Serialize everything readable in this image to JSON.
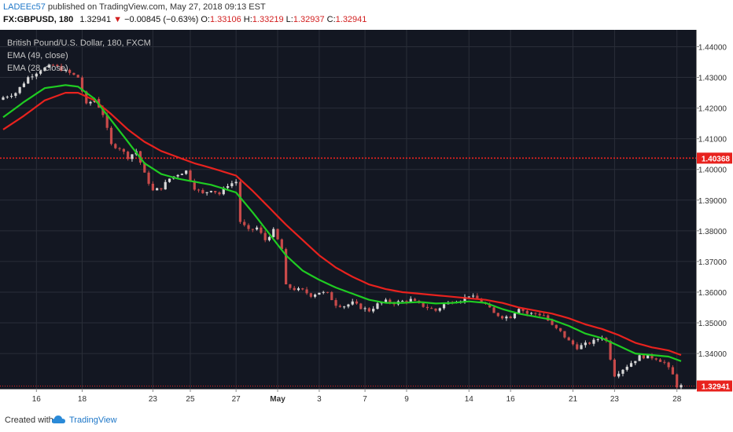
{
  "header": {
    "author": "LADEEc57",
    "published_text": "published on TradingView.com, May 27, 2018 09:13 EST",
    "symbol": "FX:GBPUSD, 180",
    "last": "1.32941",
    "change": "−0.00845 (−0.63%)",
    "o_label": "O:",
    "o_value": "1.33106",
    "h_label": "H:",
    "h_value": "1.33219",
    "l_label": "L:",
    "l_value": "1.32937",
    "c_label": "C:",
    "c_value": "1.32941"
  },
  "legend": {
    "title": "British Pound/U.S. Dollar, 180, FXCM",
    "ema1": "EMA (49, close)",
    "ema2": "EMA (28, close)"
  },
  "footer": {
    "created_with": "Created with",
    "brand": "TradingView"
  },
  "colors": {
    "background": "#131722",
    "grid": "#2a2e39",
    "candle_up": "#d8d8d8",
    "candle_down": "#c84a4a",
    "ema49": "#e8221e",
    "ema28": "#1fcc22",
    "hline": "#e8221e",
    "price_tag": "#e8221e"
  },
  "chart_data": {
    "type": "candlestick",
    "title": "British Pound/U.S. Dollar, 180, FXCM",
    "ylim": [
      1.3285,
      1.4455
    ],
    "y_ticks": [
      "1.44000",
      "1.43000",
      "1.42000",
      "1.41000",
      "1.40000",
      "1.39000",
      "1.38000",
      "1.37000",
      "1.36000",
      "1.35000",
      "1.34000"
    ],
    "x_ticks": [
      "16",
      "18",
      "23",
      "25",
      "27",
      "May",
      "3",
      "7",
      "9",
      "14",
      "16",
      "21",
      "23",
      "28"
    ],
    "x_tick_index": [
      8,
      19,
      36,
      45,
      56,
      66,
      76,
      87,
      97,
      112,
      122,
      137,
      147,
      162
    ],
    "horizontal_line": {
      "value": 1.40368,
      "label": "1.40368"
    },
    "last_price": {
      "value": 1.32941,
      "label": "1.32941"
    },
    "close_path": [
      [
        0,
        1.4235
      ],
      [
        3,
        1.425
      ],
      [
        6,
        1.43
      ],
      [
        9,
        1.4325
      ],
      [
        12,
        1.434
      ],
      [
        15,
        1.432
      ],
      [
        18,
        1.43
      ],
      [
        20,
        1.421
      ],
      [
        22,
        1.423
      ],
      [
        24,
        1.418
      ],
      [
        26,
        1.408
      ],
      [
        28,
        1.407
      ],
      [
        30,
        1.404
      ],
      [
        32,
        1.406
      ],
      [
        34,
        1.3985
      ],
      [
        36,
        1.393
      ],
      [
        38,
        1.394
      ],
      [
        40,
        1.397
      ],
      [
        42,
        1.3985
      ],
      [
        44,
        1.3995
      ],
      [
        46,
        1.394
      ],
      [
        48,
        1.392
      ],
      [
        50,
        1.3935
      ],
      [
        52,
        1.392
      ],
      [
        54,
        1.395
      ],
      [
        56,
        1.396
      ],
      [
        57,
        1.383
      ],
      [
        59,
        1.38
      ],
      [
        61,
        1.381
      ],
      [
        63,
        1.377
      ],
      [
        65,
        1.38
      ],
      [
        67,
        1.374
      ],
      [
        68,
        1.362
      ],
      [
        70,
        1.361
      ],
      [
        72,
        1.3605
      ],
      [
        74,
        1.359
      ],
      [
        76,
        1.36
      ],
      [
        78,
        1.3595
      ],
      [
        80,
        1.356
      ],
      [
        82,
        1.3555
      ],
      [
        84,
        1.3565
      ],
      [
        86,
        1.355
      ],
      [
        88,
        1.354
      ],
      [
        90,
        1.356
      ],
      [
        92,
        1.357
      ],
      [
        94,
        1.3565
      ],
      [
        96,
        1.357
      ],
      [
        98,
        1.3575
      ],
      [
        100,
        1.356
      ],
      [
        102,
        1.355
      ],
      [
        104,
        1.354
      ],
      [
        106,
        1.356
      ],
      [
        108,
        1.357
      ],
      [
        110,
        1.3575
      ],
      [
        112,
        1.359
      ],
      [
        114,
        1.3575
      ],
      [
        116,
        1.356
      ],
      [
        118,
        1.353
      ],
      [
        120,
        1.352
      ],
      [
        122,
        1.352
      ],
      [
        124,
        1.355
      ],
      [
        126,
        1.353
      ],
      [
        128,
        1.353
      ],
      [
        130,
        1.3525
      ],
      [
        132,
        1.349
      ],
      [
        134,
        1.347
      ],
      [
        136,
        1.344
      ],
      [
        138,
        1.342
      ],
      [
        140,
        1.343
      ],
      [
        142,
        1.344
      ],
      [
        144,
        1.3455
      ],
      [
        145,
        1.344
      ],
      [
        147,
        1.333
      ],
      [
        149,
        1.335
      ],
      [
        151,
        1.337
      ],
      [
        153,
        1.339
      ],
      [
        155,
        1.339
      ],
      [
        157,
        1.3385
      ],
      [
        159,
        1.337
      ],
      [
        161,
        1.333
      ],
      [
        162,
        1.3294
      ]
    ],
    "ema28_path": [
      [
        0,
        1.417
      ],
      [
        5,
        1.422
      ],
      [
        10,
        1.4265
      ],
      [
        15,
        1.4275
      ],
      [
        18,
        1.427
      ],
      [
        22,
        1.423
      ],
      [
        26,
        1.416
      ],
      [
        30,
        1.409
      ],
      [
        34,
        1.402
      ],
      [
        38,
        1.3985
      ],
      [
        42,
        1.397
      ],
      [
        46,
        1.396
      ],
      [
        50,
        1.395
      ],
      [
        56,
        1.3925
      ],
      [
        60,
        1.386
      ],
      [
        64,
        1.379
      ],
      [
        68,
        1.372
      ],
      [
        72,
        1.367
      ],
      [
        76,
        1.364
      ],
      [
        80,
        1.3615
      ],
      [
        84,
        1.3595
      ],
      [
        88,
        1.3575
      ],
      [
        92,
        1.3565
      ],
      [
        96,
        1.3565
      ],
      [
        100,
        1.3568
      ],
      [
        104,
        1.3563
      ],
      [
        108,
        1.3565
      ],
      [
        112,
        1.357
      ],
      [
        116,
        1.3565
      ],
      [
        120,
        1.3545
      ],
      [
        124,
        1.353
      ],
      [
        128,
        1.352
      ],
      [
        132,
        1.351
      ],
      [
        136,
        1.349
      ],
      [
        140,
        1.3465
      ],
      [
        144,
        1.345
      ],
      [
        148,
        1.3425
      ],
      [
        152,
        1.34
      ],
      [
        156,
        1.3395
      ],
      [
        160,
        1.339
      ],
      [
        163,
        1.3375
      ]
    ],
    "ema49_path": [
      [
        0,
        1.413
      ],
      [
        5,
        1.4175
      ],
      [
        10,
        1.4225
      ],
      [
        15,
        1.425
      ],
      [
        18,
        1.425
      ],
      [
        22,
        1.4225
      ],
      [
        26,
        1.418
      ],
      [
        30,
        1.413
      ],
      [
        34,
        1.409
      ],
      [
        38,
        1.406
      ],
      [
        42,
        1.404
      ],
      [
        46,
        1.402
      ],
      [
        50,
        1.4005
      ],
      [
        56,
        1.398
      ],
      [
        60,
        1.393
      ],
      [
        64,
        1.3875
      ],
      [
        68,
        1.382
      ],
      [
        72,
        1.377
      ],
      [
        76,
        1.372
      ],
      [
        80,
        1.368
      ],
      [
        84,
        1.365
      ],
      [
        88,
        1.3625
      ],
      [
        92,
        1.361
      ],
      [
        96,
        1.36
      ],
      [
        100,
        1.3595
      ],
      [
        104,
        1.359
      ],
      [
        108,
        1.3585
      ],
      [
        112,
        1.358
      ],
      [
        116,
        1.3575
      ],
      [
        120,
        1.3565
      ],
      [
        124,
        1.355
      ],
      [
        128,
        1.354
      ],
      [
        132,
        1.353
      ],
      [
        136,
        1.3515
      ],
      [
        140,
        1.3495
      ],
      [
        144,
        1.348
      ],
      [
        148,
        1.346
      ],
      [
        152,
        1.3435
      ],
      [
        156,
        1.342
      ],
      [
        160,
        1.341
      ],
      [
        163,
        1.3395
      ]
    ],
    "candle_count": 164
  }
}
